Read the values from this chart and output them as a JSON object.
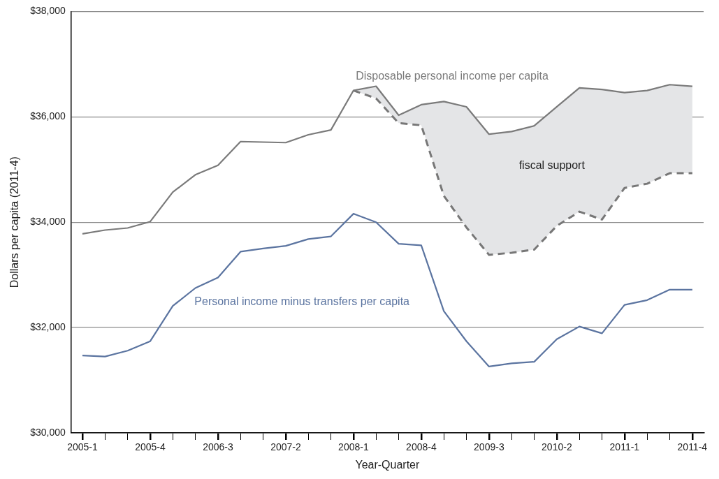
{
  "chart_data": {
    "type": "line",
    "xlabel": "Year-Quarter",
    "ylabel": "Dollars per capita (2011-4)",
    "categories": [
      "2005-1",
      null,
      null,
      "2005-4",
      null,
      null,
      "2006-3",
      null,
      null,
      "2007-2",
      null,
      null,
      "2008-1",
      null,
      null,
      "2008-4",
      null,
      null,
      "2009-3",
      null,
      null,
      "2010-2",
      null,
      null,
      "2011-1",
      null,
      null,
      "2011-4"
    ],
    "series": [
      {
        "name": "Disposable personal income per capita",
        "color": "#7a7a7a",
        "values": [
          33780,
          33850,
          33890,
          34010,
          34570,
          34900,
          35080,
          35530,
          35520,
          35510,
          35660,
          35750,
          36500,
          36580,
          36030,
          36230,
          36290,
          36190,
          35670,
          35720,
          35830,
          36190,
          36550,
          36520,
          36460,
          36500,
          36610,
          36580
        ]
      },
      {
        "color": "#777777",
        "line_style": "dashed",
        "values": [
          null,
          null,
          null,
          null,
          null,
          null,
          null,
          null,
          null,
          null,
          null,
          null,
          36500,
          36350,
          35880,
          35840,
          34500,
          33900,
          33380,
          33420,
          33480,
          33930,
          34200,
          34050,
          34650,
          34730,
          34930,
          34930
        ],
        "lower": [
          null,
          null,
          null,
          null,
          null,
          null,
          null,
          null,
          null,
          null,
          null,
          null,
          36500,
          36350,
          35880,
          35840,
          34500,
          33900,
          33380,
          33420,
          33480,
          33930,
          34200,
          34050,
          34650,
          34730,
          34930,
          34930
        ],
        "upper": [
          null,
          null,
          null,
          null,
          null,
          null,
          null,
          null,
          null,
          null,
          null,
          null,
          36500,
          36580,
          36030,
          36230,
          36290,
          36190,
          35670,
          35720,
          35830,
          36190,
          36550,
          36520,
          36460,
          36500,
          36610,
          36580
        ]
      },
      {
        "name": "Personal income minus transfers per capita",
        "color": "#5b74a0",
        "values": [
          31470,
          31450,
          31560,
          31740,
          32410,
          32750,
          32950,
          33440,
          33500,
          33550,
          33680,
          33730,
          34160,
          34000,
          33590,
          33560,
          32310,
          31740,
          31260,
          31320,
          31350,
          31780,
          32020,
          31890,
          32430,
          32520,
          32720,
          32720
        ]
      }
    ],
    "ylim": [
      30000,
      38000
    ],
    "yticks": [
      {
        "value": 30000,
        "label": "$30,000"
      },
      {
        "value": 32000,
        "label": "$32,000"
      },
      {
        "value": 34000,
        "label": "$34,000"
      },
      {
        "value": 36000,
        "label": "$36,000"
      },
      {
        "value": 38000,
        "label": "$38,000"
      }
    ],
    "grid": "y",
    "legend": false,
    "marker": "none",
    "annotations": [
      "fiscal support"
    ]
  }
}
